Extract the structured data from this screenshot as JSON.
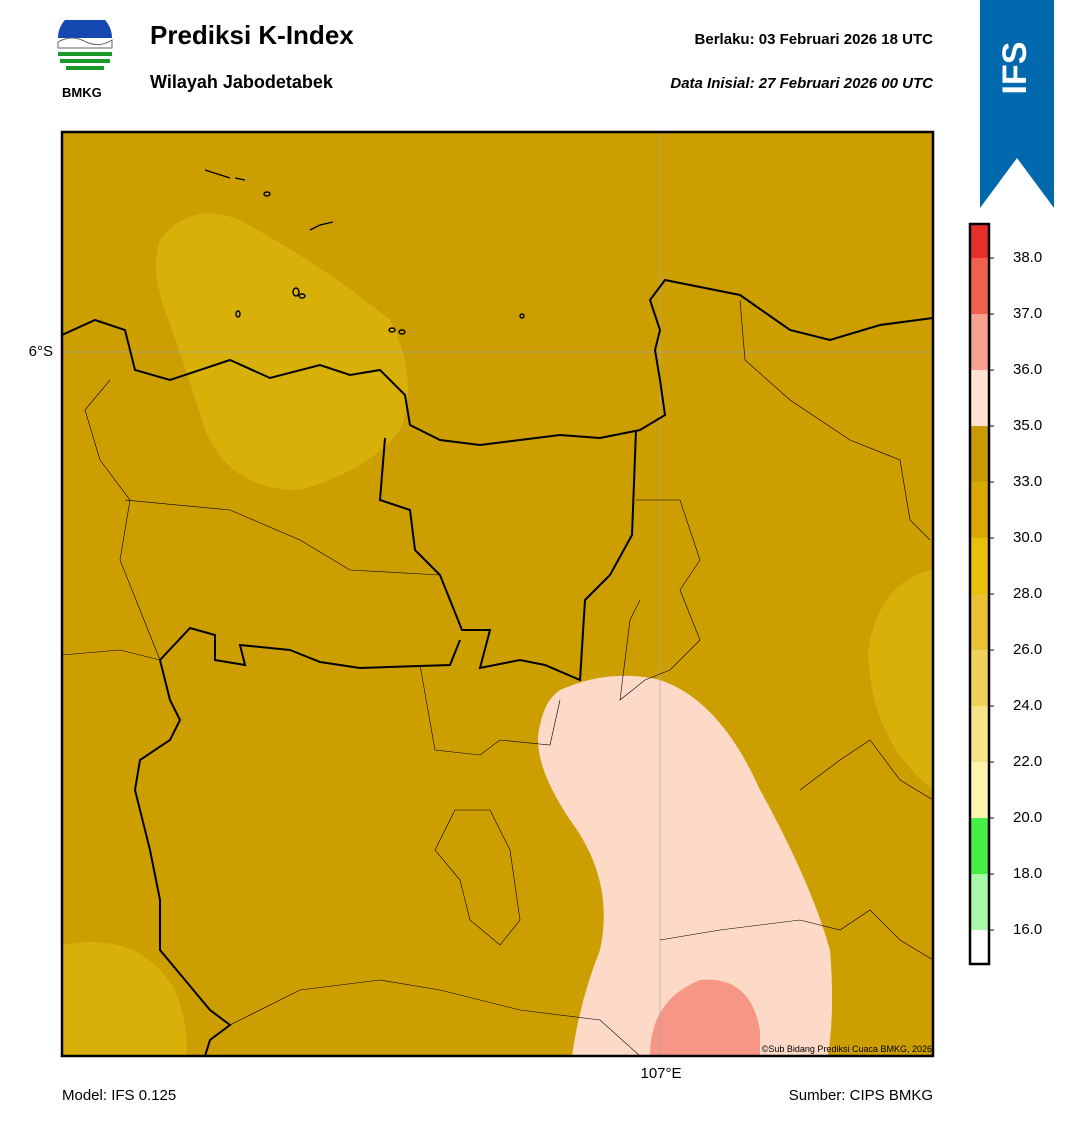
{
  "header": {
    "logo_text": "BMKG",
    "title": "Prediksi K-Index",
    "subtitle": "Wilayah Jabodetabek",
    "valid": "Berlaku:  03 Februari 2026 18 UTC",
    "init": "Data Inisial:  27 Februari 2026 00 UTC",
    "badge": "IFS"
  },
  "map": {
    "lat_label": "6°S",
    "lon_label": "107°E",
    "credit": "©Sub Bidang Prediksi Cuaca BMKG, 2026"
  },
  "colorbar": {
    "colors": [
      "#e8302a",
      "#f0604c",
      "#f8a090",
      "#ffe2d2",
      "#c89b00",
      "#d9a900",
      "#ecbf08",
      "#e8c232",
      "#f0d258",
      "#f8e488",
      "#fff4b0",
      "#44f044",
      "#a8f8a8",
      "#ffffff"
    ],
    "labels": [
      "38.0",
      "37.0",
      "36.0",
      "35.0",
      "33.0",
      "30.0",
      "28.0",
      "26.0",
      "24.0",
      "22.0",
      "20.0",
      "18.0",
      "16.0"
    ]
  },
  "footer": {
    "model": "Model: IFS 0.125",
    "source": "Sumber: CIPS BMKG"
  }
}
